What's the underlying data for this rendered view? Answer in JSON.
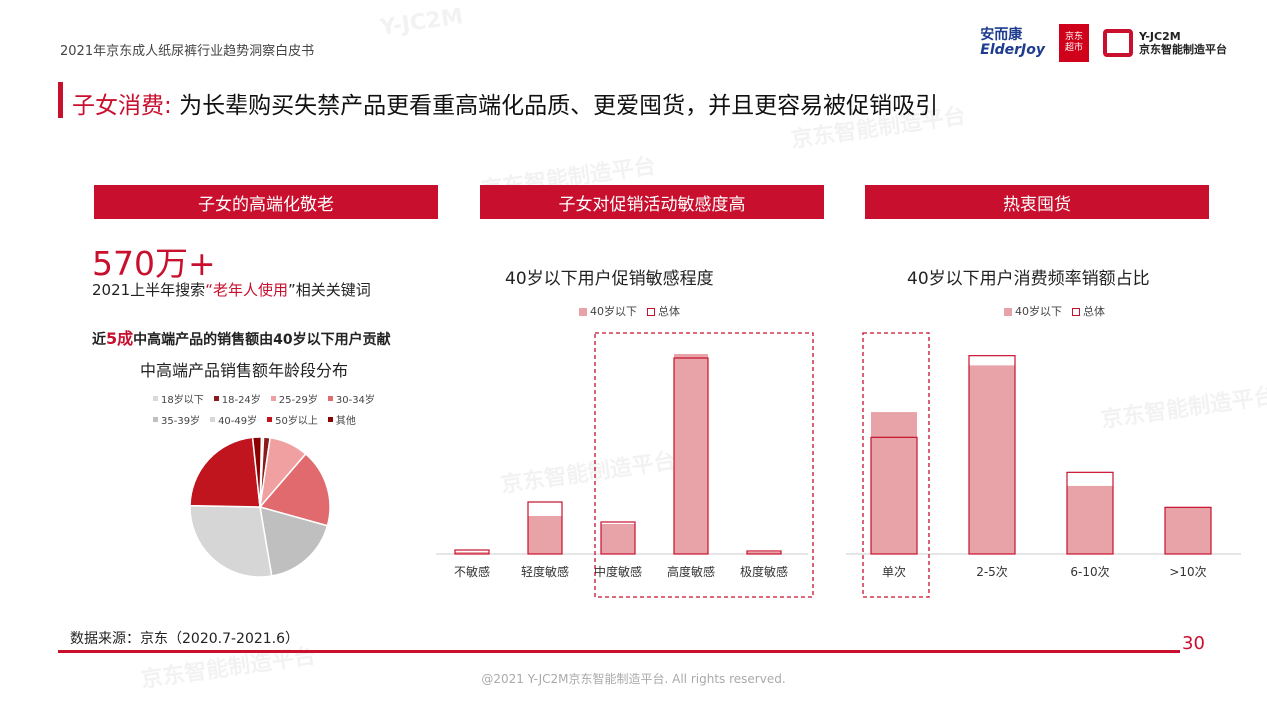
{
  "report_title": "2021年京东成人纸尿裤行业趋势洞察白皮书",
  "logos": {
    "anerkang_cn": "安而康",
    "anerkang_en": "ElderJoy",
    "jd_line1": "京东",
    "jd_line2": "超市",
    "yjc_en": "Y-JC2M",
    "yjc_cn": "京东智能制造平台"
  },
  "headline": {
    "prefix": "子女消费:",
    "text": "为长辈购买失禁产品更看重高端化品质、更爱囤货，并且更容易被促销吸引"
  },
  "section_heads": [
    "子女的高端化敬老",
    "子女对促销活动敏感度高",
    "热衷囤货"
  ],
  "left_panel": {
    "big_number": "570万+",
    "keyword_pre": "2021上半年搜索",
    "keyword_hl": "“老年人使用",
    "keyword_post": "”相关关键词",
    "contrib_pre": "近",
    "contrib_hl": "5成",
    "contrib_post": "中高端产品的销售额由40岁以下用户贡献"
  },
  "colors": {
    "accent": "#c8102e",
    "bar_under40": "#e8a3a8",
    "bar_overall_border": "#c8102e"
  },
  "chart_data": [
    {
      "type": "pie",
      "title": "中高端产品销售额年龄段分布",
      "legend": [
        "18岁以下",
        "18-24岁",
        "25-29岁",
        "30-34岁",
        "35-39岁",
        "40-49岁",
        "50岁以上",
        "其他"
      ],
      "colors": [
        "#d9d9d9",
        "#8b1a1a",
        "#f0a0a0",
        "#e06a6e",
        "#bfbfbf",
        "#d6d6d6",
        "#c0141e",
        "#8b0000"
      ],
      "values": [
        0.5,
        1.5,
        9,
        18,
        18,
        28,
        23,
        2
      ]
    },
    {
      "type": "bar",
      "title": "40岁以下用户促销敏感程度",
      "series_names": [
        "40岁以下",
        "总体"
      ],
      "categories": [
        "不敏感",
        "轻度敏感",
        "中度敏感",
        "高度敏感",
        "极度敏感"
      ],
      "series": [
        {
          "name": "40岁以下",
          "values": [
            1,
            19,
            15,
            100,
            1
          ]
        },
        {
          "name": "总体",
          "values": [
            2,
            26,
            16,
            98,
            1.5
          ]
        }
      ],
      "ylim": [
        0,
        105
      ]
    },
    {
      "type": "bar",
      "title": "40岁以下用户消费频率销额占比",
      "series_names": [
        "40岁以下",
        "总体"
      ],
      "categories": [
        "单次",
        "2-5次",
        "6-10次",
        ">10次"
      ],
      "series": [
        {
          "name": "40岁以下",
          "values": [
            73,
            97,
            35,
            24
          ]
        },
        {
          "name": "总体",
          "values": [
            60,
            102,
            42,
            24
          ]
        }
      ],
      "ylim": [
        0,
        108
      ]
    }
  ],
  "source": "数据来源：京东（2020.7-2021.6）",
  "page_number": "30",
  "copyright": "@2021 Y-JC2M京东智能制造平台. All rights reserved."
}
